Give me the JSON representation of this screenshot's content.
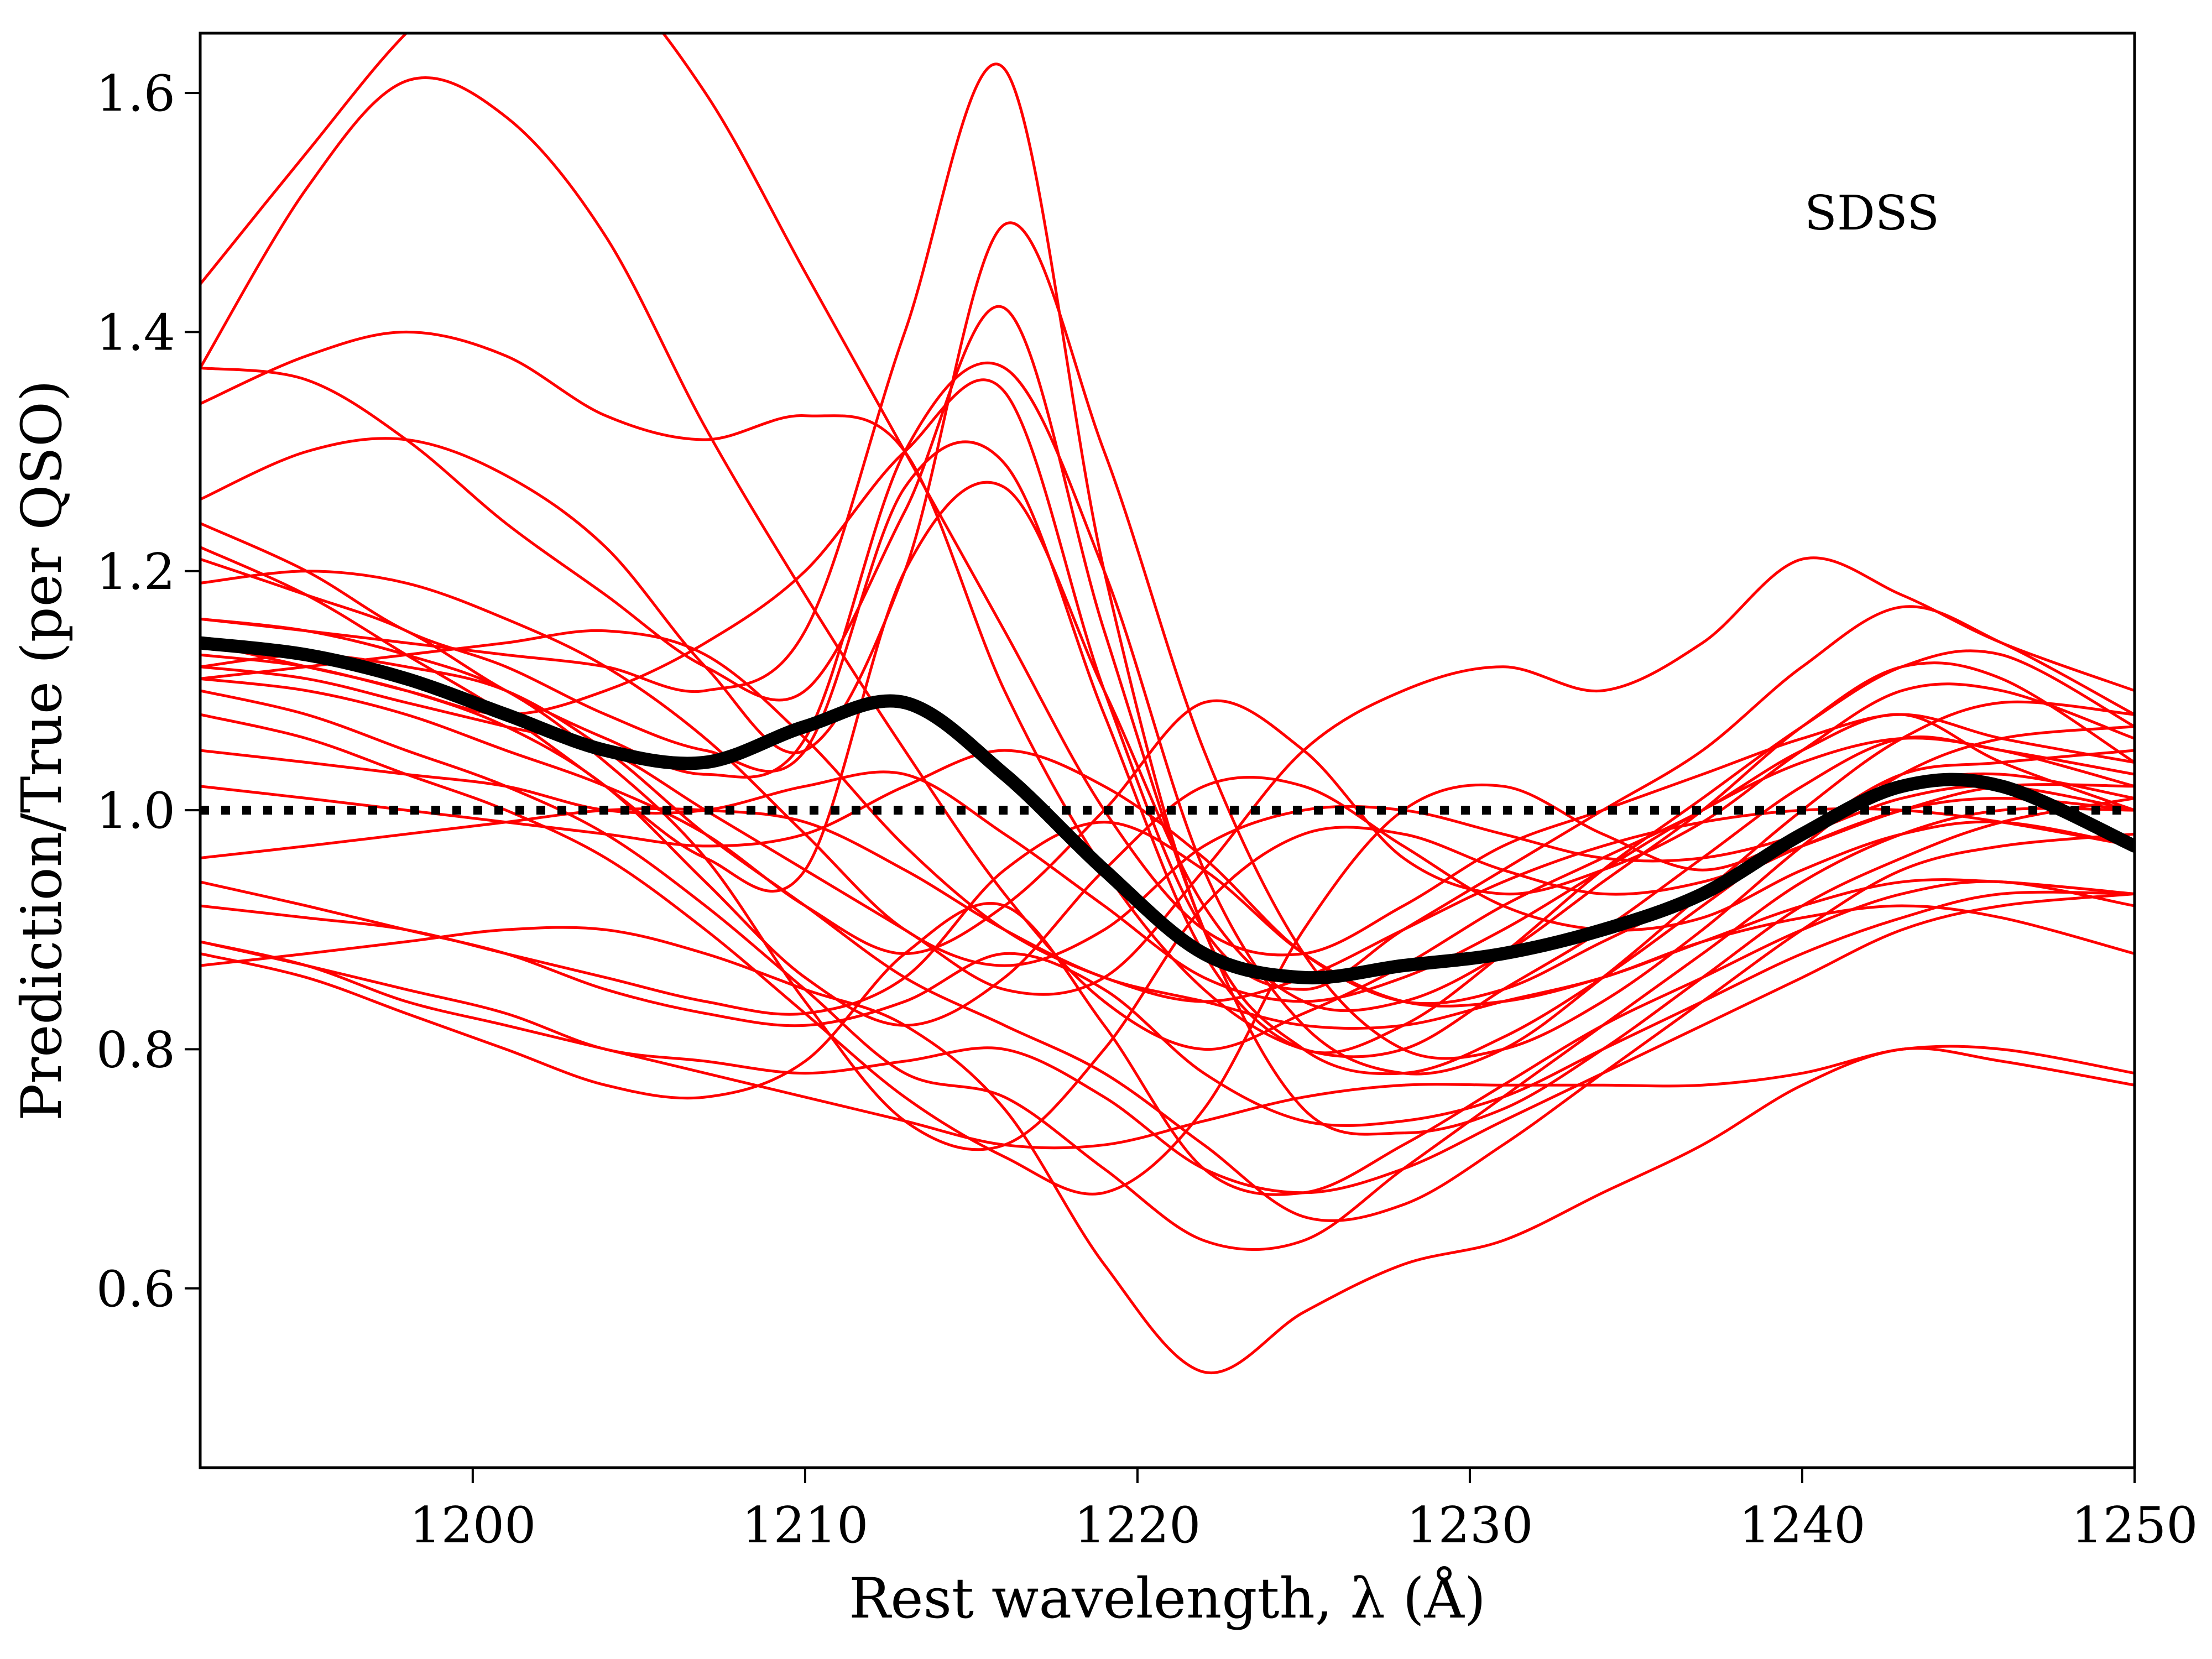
{
  "chart_data": {
    "type": "line",
    "xlabel": "Rest wavelength, λ (Å)",
    "ylabel": "Prediction/True (per QSO)",
    "annotation": "SDSS",
    "xlim": [
      1191.8,
      1250
    ],
    "ylim": [
      0.45,
      1.65
    ],
    "x_ticks": [
      "1200",
      "1210",
      "1220",
      "1230",
      "1240",
      "1250"
    ],
    "y_ticks": [
      "0.6",
      "0.8",
      "1.0",
      "1.2",
      "1.4",
      "1.6"
    ],
    "grid": false,
    "legend": "none",
    "colors": {
      "individual": "#ff0000",
      "mean": "#000000",
      "reference": "#000000"
    },
    "x": [
      1191.8,
      1195,
      1198,
      1201,
      1204,
      1207,
      1210,
      1213,
      1216,
      1219,
      1222,
      1225,
      1228,
      1231,
      1234,
      1237,
      1240,
      1243,
      1246,
      1250
    ],
    "mean": {
      "values": [
        1.14,
        1.13,
        1.11,
        1.08,
        1.05,
        1.04,
        1.07,
        1.09,
        1.03,
        0.95,
        0.88,
        0.86,
        0.87,
        0.88,
        0.9,
        0.93,
        0.98,
        1.02,
        1.02,
        0.97
      ]
    },
    "reference": {
      "values": [
        1.0,
        1.0
      ]
    },
    "series": [
      {
        "values": [
          1.44,
          1.55,
          1.65,
          1.72,
          1.7,
          1.6,
          1.45,
          1.3,
          1.15,
          1.0,
          0.9,
          0.88,
          0.92,
          0.97,
          1.0,
          1.03,
          1.06,
          1.08,
          1.06,
          1.04
        ]
      },
      {
        "values": [
          1.37,
          1.52,
          1.61,
          1.58,
          1.48,
          1.32,
          1.18,
          1.05,
          0.93,
          0.84,
          0.8,
          0.83,
          0.87,
          0.92,
          0.96,
          1.0,
          1.05,
          1.08,
          1.04,
          1.0
        ]
      },
      {
        "values": [
          1.34,
          1.38,
          1.4,
          1.38,
          1.33,
          1.31,
          1.33,
          1.3,
          1.1,
          0.95,
          0.85,
          0.8,
          0.8,
          0.85,
          0.9,
          0.96,
          1.02,
          1.06,
          1.05,
          1.03
        ]
      },
      {
        "values": [
          1.37,
          1.36,
          1.31,
          1.24,
          1.18,
          1.12,
          1.1,
          1.25,
          1.42,
          1.15,
          0.9,
          0.75,
          0.73,
          0.75,
          0.8,
          0.86,
          0.92,
          0.96,
          0.99,
          1.01
        ]
      },
      {
        "values": [
          1.26,
          1.3,
          1.31,
          1.28,
          1.22,
          1.12,
          1.05,
          1.2,
          1.49,
          1.3,
          1.05,
          0.88,
          0.8,
          0.8,
          0.84,
          0.9,
          0.97,
          1.03,
          1.06,
          1.07
        ]
      },
      {
        "values": [
          1.21,
          1.18,
          1.15,
          1.1,
          1.06,
          1.03,
          1.06,
          1.3,
          1.37,
          1.2,
          0.95,
          0.82,
          0.78,
          0.8,
          0.86,
          0.93,
          1.0,
          1.06,
          1.09,
          1.08
        ]
      },
      {
        "values": [
          1.24,
          1.2,
          1.15,
          1.12,
          1.08,
          1.05,
          1.05,
          1.27,
          1.29,
          1.08,
          0.88,
          0.8,
          0.82,
          0.88,
          0.95,
          1.01,
          1.07,
          1.12,
          1.13,
          1.07
        ]
      },
      {
        "values": [
          1.22,
          1.18,
          1.13,
          1.08,
          1.02,
          0.96,
          0.95,
          1.2,
          1.27,
          1.1,
          0.92,
          0.84,
          0.84,
          0.88,
          0.94,
          1.0,
          1.07,
          1.12,
          1.11,
          1.04
        ]
      },
      {
        "values": [
          1.16,
          1.15,
          1.14,
          1.13,
          1.12,
          1.1,
          1.15,
          1.4,
          1.62,
          1.2,
          0.9,
          0.8,
          0.78,
          0.81,
          0.86,
          0.92,
          0.98,
          1.03,
          1.04,
          1.05
        ]
      },
      {
        "values": [
          1.13,
          1.12,
          1.1,
          1.08,
          1.1,
          1.14,
          1.2,
          1.3,
          1.35,
          1.1,
          0.9,
          0.85,
          0.9,
          0.95,
          1.0,
          1.05,
          1.12,
          1.17,
          1.14,
          1.08
        ]
      },
      {
        "values": [
          1.12,
          1.11,
          1.09,
          1.07,
          1.05,
          1.0,
          0.95,
          0.9,
          0.85,
          0.86,
          0.95,
          1.05,
          1.1,
          1.12,
          1.1,
          1.14,
          1.21,
          1.18,
          1.14,
          1.1
        ]
      },
      {
        "values": [
          1.11,
          1.1,
          1.08,
          1.05,
          1.02,
          0.98,
          0.92,
          0.88,
          0.92,
          1.0,
          1.09,
          1.05,
          0.96,
          0.93,
          0.95,
          0.99,
          1.05,
          1.1,
          1.1,
          1.06
        ]
      },
      {
        "values": [
          1.12,
          1.13,
          1.12,
          1.1,
          1.05,
          0.98,
          0.92,
          0.86,
          0.82,
          0.78,
          0.72,
          0.66,
          0.67,
          0.72,
          0.78,
          0.84,
          0.9,
          0.95,
          0.97,
          0.98
        ]
      },
      {
        "values": [
          1.1,
          1.08,
          1.05,
          1.02,
          0.98,
          0.92,
          0.85,
          0.78,
          0.76,
          0.7,
          0.64,
          0.64,
          0.7,
          0.76,
          0.82,
          0.88,
          0.94,
          0.98,
          1.0,
          1.0
        ]
      },
      {
        "values": [
          1.08,
          1.06,
          1.03,
          1.0,
          0.96,
          0.9,
          0.83,
          0.76,
          0.71,
          0.68,
          0.75,
          0.9,
          1.0,
          1.02,
          0.98,
          0.95,
          0.98,
          1.02,
          1.03,
          1.01
        ]
      },
      {
        "values": [
          1.05,
          1.04,
          1.03,
          1.02,
          1.0,
          1.0,
          1.02,
          1.03,
          0.98,
          0.92,
          0.86,
          0.84,
          0.86,
          0.9,
          0.95,
          1.0,
          1.04,
          1.06,
          1.05,
          1.02
        ]
      },
      {
        "values": [
          1.02,
          1.01,
          1.0,
          0.99,
          0.98,
          0.97,
          0.98,
          1.02,
          1.05,
          1.02,
          0.96,
          0.88,
          0.84,
          0.85,
          0.89,
          0.93,
          0.97,
          1.0,
          1.01,
          1.0
        ]
      },
      {
        "values": [
          0.96,
          0.97,
          0.98,
          0.99,
          1.0,
          1.0,
          0.99,
          0.95,
          0.9,
          0.86,
          0.84,
          0.86,
          0.9,
          0.94,
          0.97,
          0.99,
          1.0,
          1.0,
          0.99,
          0.97
        ]
      },
      {
        "values": [
          0.94,
          0.92,
          0.9,
          0.88,
          0.85,
          0.83,
          0.82,
          0.84,
          0.88,
          0.85,
          0.78,
          0.74,
          0.74,
          0.76,
          0.8,
          0.84,
          0.88,
          0.91,
          0.93,
          0.93
        ]
      },
      {
        "values": [
          0.89,
          0.87,
          0.85,
          0.83,
          0.8,
          0.79,
          0.78,
          0.79,
          0.8,
          0.76,
          0.7,
          0.68,
          0.7,
          0.74,
          0.78,
          0.82,
          0.86,
          0.9,
          0.92,
          0.93
        ]
      },
      {
        "values": [
          0.88,
          0.86,
          0.83,
          0.8,
          0.77,
          0.76,
          0.79,
          0.88,
          0.92,
          0.82,
          0.7,
          0.68,
          0.72,
          0.77,
          0.82,
          0.86,
          0.9,
          0.93,
          0.94,
          0.92
        ]
      },
      {
        "values": [
          0.87,
          0.88,
          0.89,
          0.9,
          0.9,
          0.88,
          0.85,
          0.82,
          0.75,
          0.62,
          0.53,
          0.58,
          0.62,
          0.64,
          0.68,
          0.72,
          0.77,
          0.8,
          0.79,
          0.77
        ]
      },
      {
        "values": [
          0.89,
          0.87,
          0.84,
          0.82,
          0.8,
          0.78,
          0.76,
          0.74,
          0.72,
          0.72,
          0.74,
          0.76,
          0.77,
          0.77,
          0.77,
          0.77,
          0.78,
          0.8,
          0.8,
          0.78
        ]
      },
      {
        "values": [
          0.92,
          0.91,
          0.9,
          0.88,
          0.86,
          0.84,
          0.83,
          0.86,
          0.95,
          0.99,
          0.95,
          0.88,
          0.84,
          0.84,
          0.86,
          0.89,
          0.91,
          0.92,
          0.91,
          0.88
        ]
      },
      {
        "values": [
          1.19,
          1.2,
          1.19,
          1.16,
          1.12,
          1.06,
          0.98,
          0.9,
          0.87,
          0.9,
          0.97,
          1.0,
          1.0,
          0.98,
          0.96,
          0.96,
          0.98,
          1.01,
          1.02,
          1.0
        ]
      },
      {
        "values": [
          1.11,
          1.12,
          1.13,
          1.14,
          1.15,
          1.13,
          1.06,
          0.97,
          0.9,
          0.86,
          0.84,
          0.82,
          0.82,
          0.84,
          0.86,
          0.89,
          0.92,
          0.94,
          0.94,
          0.93
        ]
      },
      {
        "values": [
          1.16,
          1.15,
          1.13,
          1.1,
          1.04,
          0.96,
          0.84,
          0.74,
          0.72,
          0.8,
          0.92,
          0.98,
          0.98,
          0.95,
          0.93,
          0.94,
          0.97,
          1.0,
          1.02,
          1.02
        ]
      },
      {
        "values": [
          1.14,
          1.12,
          1.1,
          1.07,
          1.02,
          0.94,
          0.86,
          0.82,
          0.86,
          0.95,
          1.02,
          1.02,
          0.97,
          0.92,
          0.9,
          0.91,
          0.95,
          0.98,
          0.99,
          0.97
        ]
      }
    ]
  }
}
